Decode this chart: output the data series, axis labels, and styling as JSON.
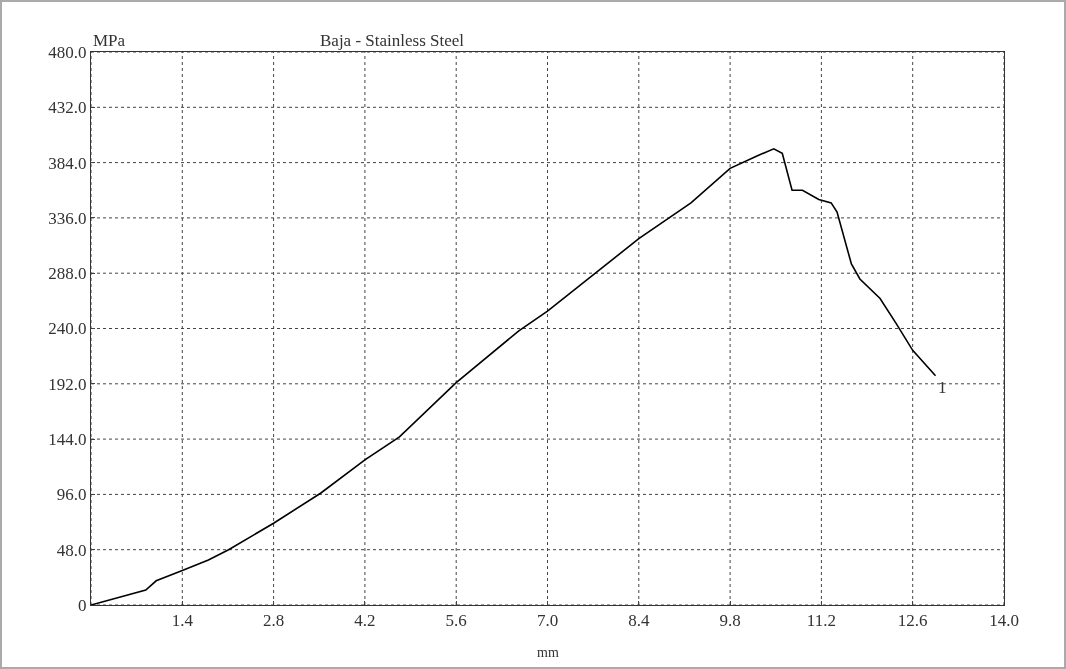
{
  "chart_data": {
    "type": "line",
    "title": "Baja - Stainless Steel",
    "xlabel": "mm",
    "ylabel": "MPa",
    "x": [
      0,
      0.84,
      1.0,
      1.4,
      1.8,
      2.11,
      2.8,
      3.52,
      4.2,
      4.73,
      5.6,
      6.56,
      7.0,
      8.4,
      9.2,
      9.8,
      10.22,
      10.47,
      10.6,
      10.75,
      10.91,
      11.16,
      11.35,
      11.44,
      11.66,
      11.79,
      12.1,
      12.35,
      12.6,
      12.95
    ],
    "series": [
      {
        "color": "#000000",
        "values": [
          0,
          13,
          21,
          30,
          39,
          48,
          71,
          97,
          126,
          146,
          193,
          238,
          255,
          318,
          349,
          379,
          390,
          396,
          392,
          360,
          360,
          352,
          349,
          341,
          296,
          283,
          266,
          244,
          221,
          199
        ]
      }
    ],
    "annotations": [
      {
        "text": "1",
        "x": 12.95,
        "y": 199
      }
    ],
    "xlim": [
      0,
      14.0
    ],
    "xticks": [
      {
        "value": 0,
        "label": null
      },
      {
        "value": 1.4,
        "label": "1.4"
      },
      {
        "value": 2.8,
        "label": "2.8"
      },
      {
        "value": 4.2,
        "label": "4.2"
      },
      {
        "value": 5.6,
        "label": "5.6"
      },
      {
        "value": 7.0,
        "label": "7.0"
      },
      {
        "value": 8.4,
        "label": "8.4"
      },
      {
        "value": 9.8,
        "label": "9.8"
      },
      {
        "value": 11.2,
        "label": "11.2"
      },
      {
        "value": 12.6,
        "label": "12.6"
      },
      {
        "value": 14.0,
        "label": "14.0"
      }
    ],
    "ylim": [
      0,
      480.0
    ],
    "yticks": [
      0,
      {
        "value": 48,
        "label": "48.0"
      },
      {
        "value": 96,
        "label": "96.0"
      },
      {
        "value": 144,
        "label": "144.0"
      },
      {
        "value": 192,
        "label": "192.0"
      },
      {
        "value": 240,
        "label": "240.0"
      },
      {
        "value": 288,
        "label": "288.0"
      },
      {
        "value": 336,
        "label": "336.0"
      },
      {
        "value": 384,
        "label": "384.0"
      },
      {
        "value": 432,
        "label": "432.0"
      },
      {
        "value": 480,
        "label": "480.0"
      }
    ],
    "grid": true,
    "marker": "none",
    "line_style": "solid"
  }
}
